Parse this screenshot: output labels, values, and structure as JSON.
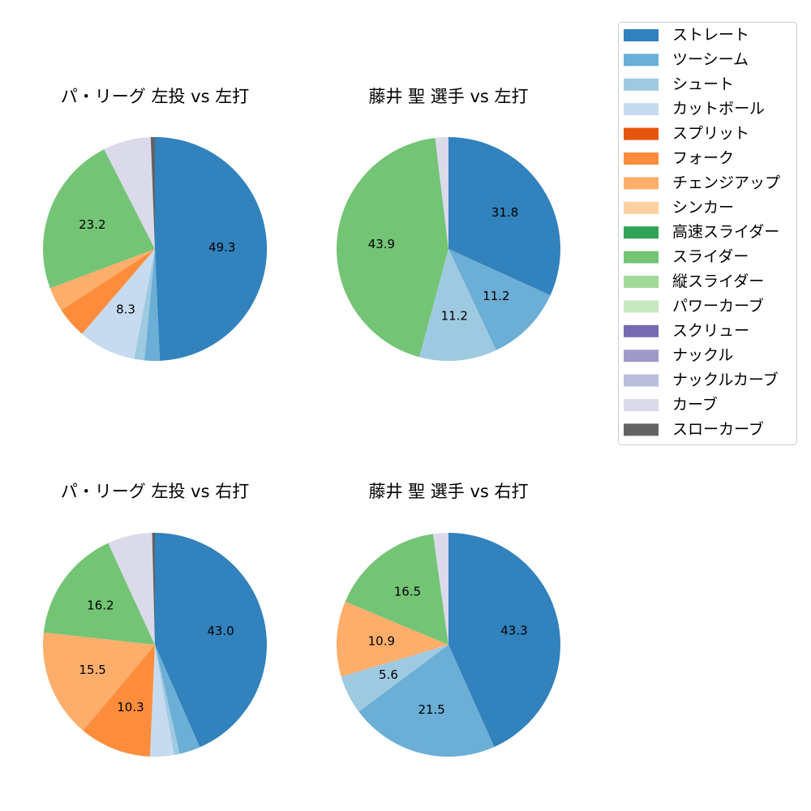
{
  "legend": {
    "placement": "upper-right",
    "items": [
      {
        "name": "ストレート",
        "color": "#3182bd"
      },
      {
        "name": "ツーシーム",
        "color": "#6baed6"
      },
      {
        "name": "シュート",
        "color": "#9ecae1"
      },
      {
        "name": "カットボール",
        "color": "#c6dbef"
      },
      {
        "name": "スプリット",
        "color": "#e6550d"
      },
      {
        "name": "フォーク",
        "color": "#fd8d3c"
      },
      {
        "name": "チェンジアップ",
        "color": "#fdae6b"
      },
      {
        "name": "シンカー",
        "color": "#fdd0a2"
      },
      {
        "name": "高速スライダー",
        "color": "#31a354"
      },
      {
        "name": "スライダー",
        "color": "#74c476"
      },
      {
        "name": "縦スライダー",
        "color": "#a1d99b"
      },
      {
        "name": "パワーカーブ",
        "color": "#c7e9c0"
      },
      {
        "name": "スクリュー",
        "color": "#756bb1"
      },
      {
        "name": "ナックル",
        "color": "#9e9ac8"
      },
      {
        "name": "ナックルカーブ",
        "color": "#bcbddc"
      },
      {
        "name": "カーブ",
        "color": "#dadaeb"
      },
      {
        "name": "スローカーブ",
        "color": "#636363"
      }
    ]
  },
  "chart_data": [
    {
      "type": "pie",
      "title": "パ・リーグ 左投 vs 左打",
      "start_angle_deg": 90,
      "direction": "clockwise",
      "slices": [
        {
          "label": "ストレート",
          "value": 49.3,
          "show_label": true
        },
        {
          "label": "ツーシーム",
          "value": 2.2,
          "show_label": false
        },
        {
          "label": "シュート",
          "value": 1.5,
          "show_label": false
        },
        {
          "label": "カットボール",
          "value": 8.3,
          "show_label": true
        },
        {
          "label": "フォーク",
          "value": 4.5,
          "show_label": false
        },
        {
          "label": "チェンジアップ",
          "value": 3.5,
          "show_label": false
        },
        {
          "label": "スライダー",
          "value": 23.2,
          "show_label": true
        },
        {
          "label": "カーブ",
          "value": 6.9,
          "show_label": false
        },
        {
          "label": "スローカーブ",
          "value": 0.6,
          "show_label": false
        }
      ]
    },
    {
      "type": "pie",
      "title": "藤井 聖 選手 vs 左打",
      "start_angle_deg": 90,
      "direction": "clockwise",
      "slices": [
        {
          "label": "ストレート",
          "value": 31.8,
          "show_label": true
        },
        {
          "label": "ツーシーム",
          "value": 11.2,
          "show_label": true
        },
        {
          "label": "シュート",
          "value": 11.2,
          "show_label": true
        },
        {
          "label": "スライダー",
          "value": 43.9,
          "show_label": true
        },
        {
          "label": "カーブ",
          "value": 1.9,
          "show_label": false
        }
      ]
    },
    {
      "type": "pie",
      "title": "パ・リーグ 左投 vs 右打",
      "start_angle_deg": 90,
      "direction": "clockwise",
      "slices": [
        {
          "label": "ストレート",
          "value": 43.0,
          "show_label": true
        },
        {
          "label": "ツーシーム",
          "value": 3.0,
          "show_label": false
        },
        {
          "label": "シュート",
          "value": 0.8,
          "show_label": false
        },
        {
          "label": "カットボール",
          "value": 3.4,
          "show_label": false
        },
        {
          "label": "フォーク",
          "value": 10.3,
          "show_label": true
        },
        {
          "label": "チェンジアップ",
          "value": 15.5,
          "show_label": true
        },
        {
          "label": "スライダー",
          "value": 16.2,
          "show_label": true
        },
        {
          "label": "カーブ",
          "value": 6.4,
          "show_label": false
        },
        {
          "label": "スローカーブ",
          "value": 0.4,
          "show_label": false
        }
      ]
    },
    {
      "type": "pie",
      "title": "藤井 聖 選手 vs 右打",
      "start_angle_deg": 90,
      "direction": "clockwise",
      "slices": [
        {
          "label": "ストレート",
          "value": 43.3,
          "show_label": true
        },
        {
          "label": "ツーシーム",
          "value": 21.5,
          "show_label": true
        },
        {
          "label": "シュート",
          "value": 5.6,
          "show_label": true
        },
        {
          "label": "チェンジアップ",
          "value": 10.9,
          "show_label": true
        },
        {
          "label": "スライダー",
          "value": 16.5,
          "show_label": true
        },
        {
          "label": "カーブ",
          "value": 2.2,
          "show_label": false
        }
      ]
    }
  ]
}
